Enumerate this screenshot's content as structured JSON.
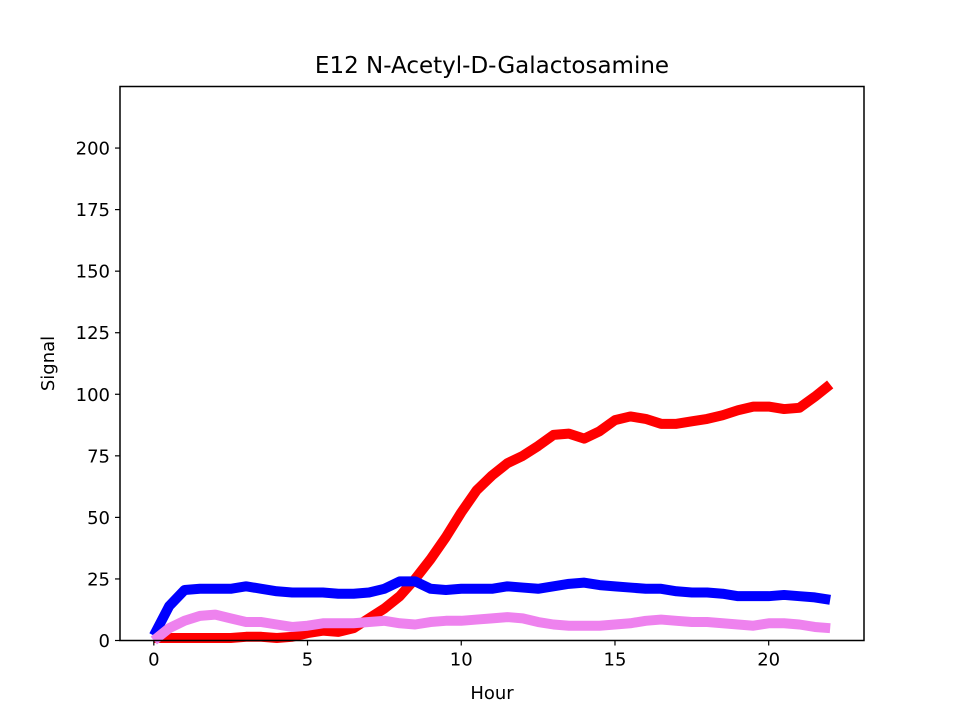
{
  "chart_data": {
    "type": "line",
    "title": "E12 N-Acetyl-D-Galactosamine",
    "xlabel": "Hour",
    "ylabel": "Signal",
    "xlim": [
      -1.1,
      23.1
    ],
    "ylim": [
      0,
      225
    ],
    "xticks": [
      0,
      5,
      10,
      15,
      20
    ],
    "yticks": [
      0,
      25,
      50,
      75,
      100,
      125,
      150,
      175,
      200
    ],
    "grid": false,
    "legend": "none",
    "series": [
      {
        "color": "#ff0000",
        "x": [
          0,
          0.5,
          1,
          1.5,
          2,
          2.5,
          3,
          3.5,
          4,
          4.5,
          5,
          5.5,
          6,
          6.5,
          7,
          7.5,
          8,
          8.5,
          9,
          9.5,
          10,
          10.5,
          11,
          11.5,
          12,
          12.5,
          13,
          13.5,
          14,
          14.5,
          15,
          15.5,
          16,
          16.5,
          17,
          17.5,
          18,
          18.5,
          19,
          19.5,
          20,
          20.5,
          21,
          21.5,
          22
        ],
        "y": [
          1,
          1,
          1,
          1,
          1,
          1,
          1.5,
          1.5,
          1,
          1.5,
          3,
          4,
          3.5,
          5,
          9,
          13,
          18,
          25,
          33,
          42,
          52,
          61,
          67,
          72,
          75,
          79,
          83.5,
          84,
          82,
          85,
          89.5,
          91,
          90,
          88,
          88,
          89,
          90,
          91.5,
          93.5,
          95,
          95,
          94,
          94.5,
          99,
          104
        ]
      },
      {
        "color": "#0000ff",
        "x": [
          0,
          0.5,
          1,
          1.5,
          2,
          2.5,
          3,
          3.5,
          4,
          4.5,
          5,
          5.5,
          6,
          6.5,
          7,
          7.5,
          8,
          8.5,
          9,
          9.5,
          10,
          10.5,
          11,
          11.5,
          12,
          12.5,
          13,
          13.5,
          14,
          14.5,
          15,
          15.5,
          16,
          16.5,
          17,
          17.5,
          18,
          18.5,
          19,
          19.5,
          20,
          20.5,
          21,
          21.5,
          22
        ],
        "y": [
          2,
          14,
          20.5,
          21,
          21,
          21,
          22,
          21,
          20,
          19.5,
          19.5,
          19.5,
          19,
          19,
          19.5,
          21,
          24,
          24,
          21,
          20.5,
          21,
          21,
          21,
          22,
          21.5,
          21,
          22,
          23,
          23.5,
          22.5,
          22,
          21.5,
          21,
          21,
          20,
          19.5,
          19.5,
          19,
          18,
          18,
          18,
          18.5,
          18,
          17.5,
          16.5
        ]
      },
      {
        "color": "#ee82ee",
        "x": [
          0,
          0.5,
          1,
          1.5,
          2,
          2.5,
          3,
          3.5,
          4,
          4.5,
          5,
          5.5,
          6,
          6.5,
          7,
          7.5,
          8,
          8.5,
          9,
          9.5,
          10,
          10.5,
          11,
          11.5,
          12,
          12.5,
          13,
          13.5,
          14,
          14.5,
          15,
          15.5,
          16,
          16.5,
          17,
          17.5,
          18,
          18.5,
          19,
          19.5,
          20,
          20.5,
          21,
          21.5,
          22
        ],
        "y": [
          0,
          5,
          8,
          10,
          10.5,
          9,
          7.5,
          7.5,
          6.5,
          5.5,
          6,
          7,
          7,
          7,
          7.5,
          8,
          7,
          6.5,
          7.5,
          8,
          8,
          8.5,
          9,
          9.5,
          9,
          7.5,
          6.5,
          6,
          6,
          6,
          6.5,
          7,
          8,
          8.5,
          8,
          7.5,
          7.5,
          7,
          6.5,
          6,
          7,
          7,
          6.5,
          5.5,
          5
        ]
      }
    ]
  }
}
